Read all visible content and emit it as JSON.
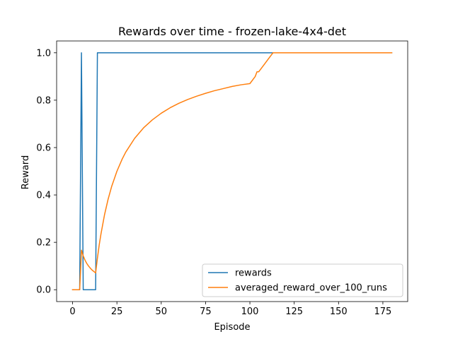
{
  "chart_data": {
    "type": "line",
    "title": "Rewards over time - frozen-lake-4x4-det",
    "xlabel": "Episode",
    "ylabel": "Reward",
    "xlim": [
      -9,
      189
    ],
    "ylim": [
      -0.05,
      1.05
    ],
    "xticks": [
      0,
      25,
      50,
      75,
      100,
      125,
      150,
      175
    ],
    "yticks": [
      0.0,
      0.2,
      0.4,
      0.6,
      0.8,
      1.0
    ],
    "xtick_labels": [
      "0",
      "25",
      "50",
      "75",
      "100",
      "125",
      "150",
      "175"
    ],
    "ytick_labels": [
      "0.0",
      "0.2",
      "0.4",
      "0.6",
      "0.8",
      "1.0"
    ],
    "grid": false,
    "legend_position": "lower-right",
    "colors": {
      "rewards": "#1f77b4",
      "averaged": "#ff7f0e"
    },
    "series": [
      {
        "name": "rewards",
        "color": "#1f77b4",
        "x": [
          0,
          4,
          5,
          6,
          13,
          14,
          180
        ],
        "y": [
          0,
          0,
          1,
          0,
          0,
          1,
          1
        ]
      },
      {
        "name": "averaged_reward_over_100_runs",
        "color": "#ff7f0e",
        "x": [
          0,
          4,
          5,
          6,
          7,
          8,
          9,
          10,
          11,
          12,
          13,
          14,
          15,
          16,
          18,
          20,
          22,
          25,
          28,
          30,
          35,
          40,
          45,
          50,
          55,
          60,
          65,
          70,
          75,
          80,
          85,
          90,
          95,
          100,
          103,
          104,
          105,
          108,
          110,
          113,
          120,
          140,
          160,
          180
        ],
        "y": [
          0,
          0,
          0.167,
          0.143,
          0.125,
          0.111,
          0.1,
          0.091,
          0.083,
          0.077,
          0.071,
          0.133,
          0.188,
          0.235,
          0.316,
          0.381,
          0.435,
          0.5,
          0.552,
          0.581,
          0.639,
          0.683,
          0.717,
          0.745,
          0.768,
          0.787,
          0.803,
          0.817,
          0.829,
          0.84,
          0.849,
          0.858,
          0.865,
          0.87,
          0.9,
          0.92,
          0.92,
          0.95,
          0.97,
          1.0,
          1.0,
          1.0,
          1.0,
          1.0
        ]
      }
    ]
  }
}
